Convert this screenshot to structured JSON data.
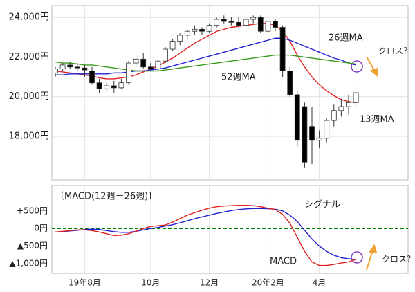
{
  "chart_data": [
    {
      "type": "candlestick",
      "up_color": "#ffffff",
      "down_color": "#000000",
      "open": [
        21200,
        21400,
        21600,
        21500,
        21450,
        21300,
        20700,
        20400,
        20550,
        20450,
        20700,
        21700,
        21900,
        21500,
        21400,
        21800,
        22400,
        22800,
        23100,
        23300,
        23400,
        23300,
        23600,
        23900,
        23800,
        23750,
        23600,
        23900,
        24000,
        23300,
        23800,
        23500,
        21300,
        20100,
        19500,
        18500,
        17800,
        17900,
        18800,
        19300,
        19500,
        19700
      ],
      "high": [
        21500,
        21700,
        21750,
        21700,
        21600,
        21500,
        20900,
        20700,
        20800,
        20900,
        21800,
        22100,
        22200,
        21700,
        21900,
        22500,
        22900,
        23200,
        23400,
        23600,
        23500,
        23700,
        24000,
        24100,
        24000,
        24000,
        24100,
        24100,
        24100,
        23900,
        23900,
        23600,
        21500,
        20300,
        19700,
        19500,
        18300,
        18900,
        19600,
        19900,
        20100,
        20500
      ],
      "low": [
        21000,
        21300,
        21400,
        21300,
        21000,
        20600,
        20200,
        20300,
        20200,
        20400,
        20600,
        21500,
        21400,
        21300,
        21300,
        21700,
        22300,
        22600,
        22900,
        23100,
        23100,
        23200,
        23500,
        23700,
        23600,
        23500,
        23500,
        23700,
        23200,
        23200,
        23300,
        21000,
        20000,
        17500,
        16400,
        16600,
        17400,
        17700,
        18500,
        19000,
        19100,
        19500
      ],
      "close": [
        21400,
        21600,
        21500,
        21450,
        21350,
        20700,
        20400,
        20550,
        20450,
        20700,
        21700,
        21900,
        21500,
        21400,
        21800,
        22400,
        22800,
        23100,
        23300,
        23400,
        23300,
        23600,
        23900,
        23800,
        23750,
        23600,
        23900,
        24000,
        23300,
        23800,
        23500,
        21300,
        20100,
        17800,
        16700,
        17800,
        17900,
        18800,
        19300,
        19500,
        19700,
        20200
      ],
      "lines": [
        {
          "name": "13週MA",
          "color": "#e02020",
          "values": [
            21300,
            21250,
            21200,
            21150,
            21100,
            21050,
            20950,
            20900,
            20900,
            20950,
            21000,
            21100,
            21250,
            21400,
            21550,
            21750,
            21950,
            22200,
            22450,
            22700,
            22900,
            23100,
            23300,
            23400,
            23500,
            23550,
            23600,
            23650,
            23700,
            23700,
            23600,
            23300,
            22800,
            22100,
            21500,
            21000,
            20600,
            20300,
            20050,
            19850,
            19750,
            19700
          ]
        },
        {
          "name": "26週MA",
          "color": "#2020d0",
          "values": [
            21100,
            21100,
            21150,
            21150,
            21150,
            21150,
            21150,
            21150,
            21200,
            21200,
            21250,
            21300,
            21300,
            21350,
            21400,
            21450,
            21550,
            21650,
            21750,
            21850,
            21950,
            22050,
            22150,
            22250,
            22350,
            22450,
            22550,
            22650,
            22750,
            22850,
            22950,
            22950,
            22850,
            22700,
            22550,
            22400,
            22250,
            22100,
            21950,
            21850,
            21700,
            21600
          ]
        },
        {
          "name": "52週MA",
          "color": "#3a9a1a",
          "values": [
            21750,
            21700,
            21700,
            21650,
            21600,
            21600,
            21550,
            21500,
            21450,
            21400,
            21350,
            21300,
            21300,
            21300,
            21300,
            21350,
            21400,
            21450,
            21500,
            21550,
            21600,
            21650,
            21700,
            21750,
            21800,
            21850,
            21900,
            21950,
            22000,
            22050,
            22100,
            22100,
            22100,
            22050,
            22000,
            21950,
            21900,
            21850,
            21800,
            21750,
            21700,
            21650
          ]
        }
      ],
      "ylim": [
        15800,
        24600
      ],
      "yticks": [
        {
          "value": 18000,
          "label": "18,000円"
        },
        {
          "value": 20000,
          "label": "20,000円"
        },
        {
          "value": 22000,
          "label": "22,000円"
        },
        {
          "value": 24000,
          "label": "24,000円"
        }
      ],
      "grid": true,
      "annotation": "クロス？"
    },
    {
      "type": "line",
      "title": "〔MACD(12週－26週)〕",
      "categories": [
        null,
        null,
        null,
        null,
        "19年8月",
        null,
        null,
        null,
        null,
        null,
        null,
        null,
        null,
        "10月",
        null,
        null,
        null,
        null,
        null,
        null,
        null,
        "12月",
        null,
        null,
        null,
        null,
        null,
        null,
        null,
        "20年2月",
        null,
        null,
        null,
        null,
        null,
        null,
        "4月",
        null,
        null,
        null,
        null,
        null
      ],
      "series": [
        {
          "name": "シグナル",
          "color": "#2020d0",
          "values": [
            -100,
            -90,
            -70,
            -50,
            -30,
            -20,
            -30,
            -60,
            -90,
            -110,
            -110,
            -80,
            -40,
            0,
            30,
            70,
            110,
            160,
            220,
            280,
            330,
            380,
            430,
            470,
            510,
            540,
            560,
            570,
            570,
            565,
            550,
            500,
            380,
            200,
            -50,
            -300,
            -500,
            -650,
            -760,
            -830,
            -860,
            -880
          ]
        },
        {
          "name": "MACD",
          "color": "#e02020",
          "values": [
            -100,
            -80,
            -60,
            -40,
            -40,
            -60,
            -100,
            -150,
            -200,
            -190,
            -150,
            -80,
            0,
            60,
            80,
            100,
            180,
            280,
            380,
            450,
            520,
            580,
            620,
            640,
            650,
            660,
            660,
            650,
            620,
            580,
            540,
            400,
            150,
            -250,
            -650,
            -950,
            -1050,
            -1050,
            -1020,
            -980,
            -950,
            -880
          ]
        }
      ],
      "ylim": [
        -1275,
        1225
      ],
      "yticks": [
        {
          "value": -1000,
          "label": "▲1,000円"
        },
        {
          "value": -500,
          "label": "▲500円"
        },
        {
          "value": 0,
          "label": "0円"
        },
        {
          "value": 500,
          "label": "+500円"
        }
      ],
      "zero_line_color": "#008000",
      "annotation": "クロス？"
    }
  ]
}
